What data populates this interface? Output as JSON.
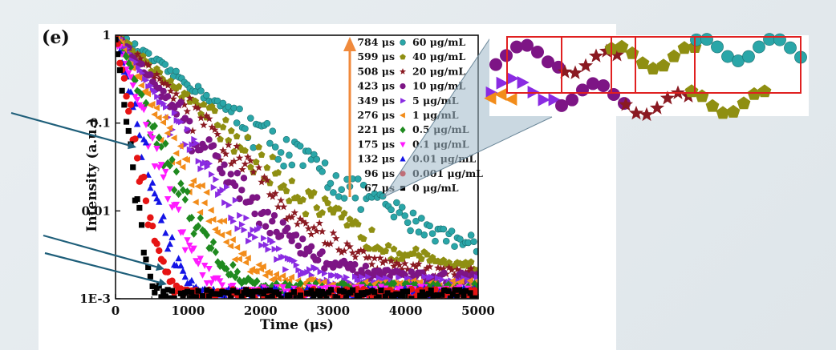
{
  "panel_label": "(e)",
  "chart_data": {
    "type": "scatter",
    "title": "",
    "xlabel": "Time (μs)",
    "ylabel": "Intensity (a.u.)",
    "xlim": [
      0,
      5000
    ],
    "ylim": [
      0.001,
      1
    ],
    "y_scale": "log",
    "x_ticks": [
      0,
      1000,
      2000,
      3000,
      4000,
      5000
    ],
    "x_tick_labels": [
      "0",
      "1000",
      "2000",
      "3000",
      "4000",
      "5000"
    ],
    "y_ticks": [
      1,
      0.1,
      0.01,
      0.001
    ],
    "y_tick_labels": [
      "1",
      "0.1",
      "0.01",
      "1E-3"
    ],
    "legend_position": "top-right",
    "legend_arrow_color": "#f08a3c",
    "series": [
      {
        "name": "60 μg/mL",
        "lifetime": "784 μs",
        "tau": 784,
        "floor": 0.0025,
        "color": "#2aa6a8",
        "marker": "sphere"
      },
      {
        "name": "40 μg/mL",
        "lifetime": "599 μs",
        "tau": 599,
        "floor": 0.0021,
        "color": "#8f8f12",
        "marker": "pentagon"
      },
      {
        "name": "20 μg/mL",
        "lifetime": "508 μs",
        "tau": 508,
        "floor": 0.0019,
        "color": "#8a1a22",
        "marker": "star"
      },
      {
        "name": "10 μg/mL",
        "lifetime": "423 μs",
        "tau": 423,
        "floor": 0.0017,
        "color": "#7d1585",
        "marker": "circle"
      },
      {
        "name": "5 μg/mL",
        "lifetime": "349 μs",
        "tau": 349,
        "floor": 0.00155,
        "color": "#8a2be2",
        "marker": "triangle-right"
      },
      {
        "name": "1 μg/mL",
        "lifetime": "276 μs",
        "tau": 276,
        "floor": 0.0014,
        "color": "#f28c1a",
        "marker": "triangle-left"
      },
      {
        "name": "0.5 μg/mL",
        "lifetime": "221 μs",
        "tau": 221,
        "floor": 0.0013,
        "color": "#1f8a1f",
        "marker": "diamond"
      },
      {
        "name": "0.1 μg/mL",
        "lifetime": "175 μs",
        "tau": 175,
        "floor": 0.0012,
        "color": "#ff1aff",
        "marker": "triangle-down"
      },
      {
        "name": "0.01 μg/mL",
        "lifetime": "132 μs",
        "tau": 132,
        "floor": 0.00115,
        "color": "#1414e6",
        "marker": "triangle-up"
      },
      {
        "name": "0.001 μg/mL",
        "lifetime": "96 μs",
        "tau": 96,
        "floor": 0.00112,
        "color": "#e61414",
        "marker": "circle"
      },
      {
        "name": "0 μg/mL",
        "lifetime": "67 μs",
        "tau": 67,
        "floor": 0.0011,
        "color": "#000000",
        "marker": "square"
      }
    ]
  },
  "annotation": {
    "arrow_color": "#1f5f7a",
    "zoom_box_color": "#e02020",
    "zoom_cone_color": "#9fb8c8"
  }
}
